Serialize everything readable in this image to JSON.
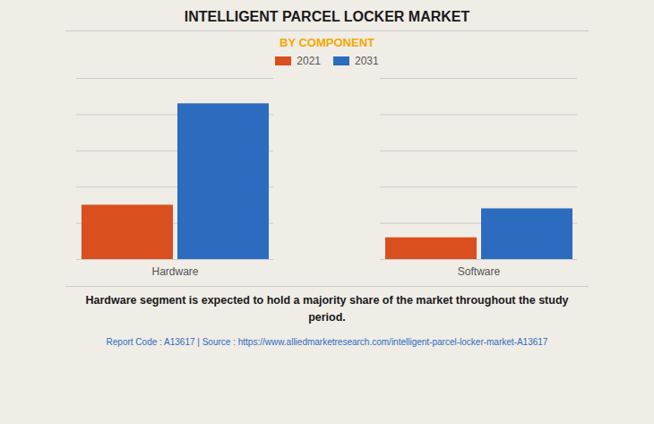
{
  "chart_data": {
    "type": "bar",
    "title": "INTELLIGENT PARCEL LOCKER MARKET",
    "subtitle": "BY COMPONENT",
    "categories": [
      "Hardware",
      "Software"
    ],
    "series": [
      {
        "name": "2021",
        "color": "#d94f1e",
        "values": [
          0.3,
          0.12
        ]
      },
      {
        "name": "2031",
        "color": "#2b6cbf",
        "values": [
          0.86,
          0.28
        ]
      }
    ],
    "ylim": [
      0,
      1.0
    ],
    "yticks": [
      0,
      0.2,
      0.4,
      0.6,
      0.8,
      1.0
    ],
    "grid": true,
    "legend": "top",
    "tick_labels": "x",
    "annotations": [
      "Hardware segment is expected to hold a majority share of the market throughout the study\nperiod.",
      "Report Code : A13617  |  Source : https://www.alliedmarketresearch.com/intelligent-parcel-locker-market-A13617"
    ]
  }
}
